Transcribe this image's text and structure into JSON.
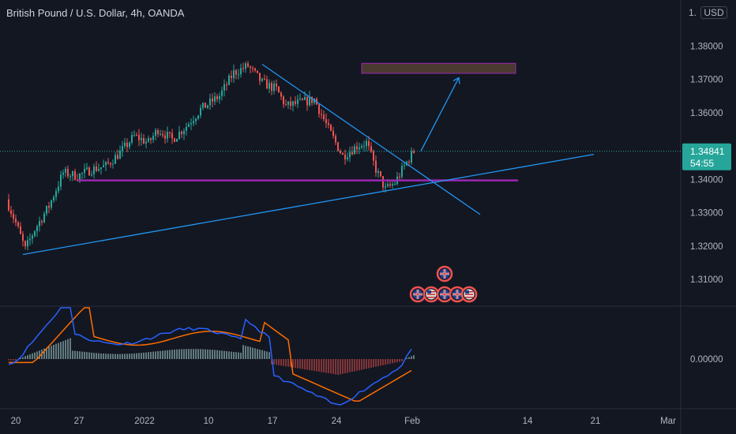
{
  "header": {
    "title": "British Pound / U.S. Dollar, 4h, OANDA",
    "axis_top": "1.",
    "currency": "USD"
  },
  "colors": {
    "background": "#131722",
    "bull": "#26a69a",
    "bear": "#ef5350",
    "trendline": "#2196f3",
    "support": "#9c27b0",
    "target_box_fill": "#4a3a30",
    "target_box_border": "#9c27b0",
    "price_badge": "#26a69a",
    "macd": "#2962ff",
    "signal": "#ff6d00",
    "hist_pos": "#b2dfdb",
    "hist_neg": "#ef5350",
    "event_icon_ring": "#ef5350"
  },
  "chart_data": [
    {
      "type": "candlestick",
      "title": "British Pound / U.S. Dollar, 4h, OANDA",
      "x_ticks": [
        "20",
        "27",
        "2022",
        "10",
        "17",
        "24",
        "Feb",
        "14",
        "21",
        "Mar"
      ],
      "y_ticks": [
        "1.38000",
        "1.37000",
        "1.36000",
        "1.34000",
        "1.33000",
        "1.32000",
        "1.31000"
      ],
      "ylim": [
        1.302,
        1.39
      ],
      "current_price": "1.34841",
      "countdown": "54:55",
      "price_path_anchors": [
        {
          "t": 0,
          "p": 1.334
        },
        {
          "t": 4,
          "p": 1.327
        },
        {
          "t": 8,
          "p": 1.319
        },
        {
          "t": 12,
          "p": 1.325
        },
        {
          "t": 18,
          "p": 1.332
        },
        {
          "t": 24,
          "p": 1.342
        },
        {
          "t": 30,
          "p": 1.341
        },
        {
          "t": 36,
          "p": 1.343
        },
        {
          "t": 42,
          "p": 1.344
        },
        {
          "t": 48,
          "p": 1.348
        },
        {
          "t": 54,
          "p": 1.353
        },
        {
          "t": 60,
          "p": 1.351
        },
        {
          "t": 64,
          "p": 1.355
        },
        {
          "t": 70,
          "p": 1.352
        },
        {
          "t": 76,
          "p": 1.356
        },
        {
          "t": 82,
          "p": 1.361
        },
        {
          "t": 90,
          "p": 1.365
        },
        {
          "t": 96,
          "p": 1.372
        },
        {
          "t": 102,
          "p": 1.374
        },
        {
          "t": 108,
          "p": 1.369
        },
        {
          "t": 114,
          "p": 1.367
        },
        {
          "t": 118,
          "p": 1.362
        },
        {
          "t": 124,
          "p": 1.363
        },
        {
          "t": 130,
          "p": 1.364
        },
        {
          "t": 136,
          "p": 1.355
        },
        {
          "t": 142,
          "p": 1.347
        },
        {
          "t": 148,
          "p": 1.35
        },
        {
          "t": 152,
          "p": 1.351
        },
        {
          "t": 156,
          "p": 1.343
        },
        {
          "t": 160,
          "p": 1.337
        },
        {
          "t": 164,
          "p": 1.339
        },
        {
          "t": 168,
          "p": 1.344
        },
        {
          "t": 172,
          "p": 1.3484
        }
      ],
      "annotations": {
        "resistance_trendline": [
          {
            "t": 108,
            "p": 1.3745
          },
          {
            "t": 200,
            "p": 1.3295
          }
        ],
        "support_trendline": [
          {
            "t": 7,
            "p": 1.3175
          },
          {
            "t": 248,
            "p": 1.3475
          }
        ],
        "horizontal_support": {
          "p": 1.3397,
          "t_start": 30,
          "t_end": 216
        },
        "target_box": {
          "p_top": 1.3748,
          "p_bottom": 1.3718,
          "t_start": 150,
          "t_end": 215
        },
        "projection_arrow": [
          {
            "t": 175,
            "p": 1.3485
          },
          {
            "t": 191,
            "p": 1.3705
          }
        ]
      },
      "events": {
        "row_flags": [
          "GB",
          "US",
          "GB",
          "GB",
          "GB",
          "US"
        ],
        "top_flag": "GB"
      }
    },
    {
      "type": "macd",
      "y_tick": "0.00000",
      "note": "MACD line, signal line and histogram"
    }
  ]
}
